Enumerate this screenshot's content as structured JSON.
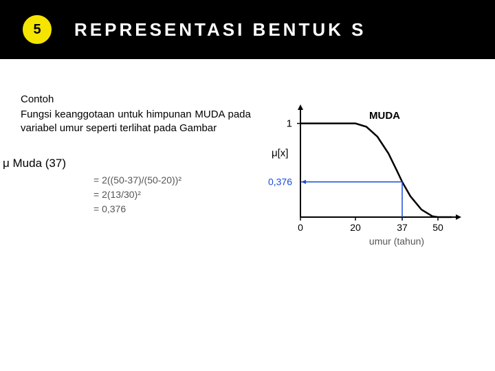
{
  "header": {
    "badge_number": "5",
    "title": "REPRESENTASI BENTUK S"
  },
  "body_text": {
    "contoh_label": "Contoh",
    "paragraph": "Fungsi keanggotaan untuk himpunan MUDA pada variabel umur seperti terlihat pada Gambar",
    "mu_label": "μ Muda  (37)",
    "calc_line1": "=   2((50-37)/(50-20))²",
    "calc_line2": "=   2(13/30)²",
    "calc_line3": "=   0,376"
  },
  "chart": {
    "type": "line",
    "curve_label": "MUDA",
    "y_axis_label": "μ[x]",
    "x_axis_label": "umur (tahun)",
    "y_max_tick": "1",
    "x_tick_0": "0",
    "x_tick_20": "20",
    "x_tick_37": "37",
    "x_tick_50": "50",
    "y_marker_value": "0,376",
    "x_marker_value": 37,
    "colors": {
      "axis": "#000000",
      "curve": "#000000",
      "marker_line": "#1a4cd6",
      "marker_text": "#1a4cd6",
      "background": "#ffffff",
      "label_text": "#555555"
    },
    "axis_line_width": 2,
    "curve_line_width": 2.5,
    "marker_line_width": 1.5,
    "xlim": [
      0,
      55
    ],
    "ylim": [
      0,
      1.1
    ],
    "s_curve_a": 20,
    "s_curve_b": 50,
    "curve_points": [
      {
        "x": 0,
        "y": 1.0
      },
      {
        "x": 20,
        "y": 1.0
      },
      {
        "x": 24,
        "y": 0.964
      },
      {
        "x": 28,
        "y": 0.858
      },
      {
        "x": 32,
        "y": 0.68
      },
      {
        "x": 35,
        "y": 0.5
      },
      {
        "x": 37,
        "y": 0.376
      },
      {
        "x": 40,
        "y": 0.222
      },
      {
        "x": 44,
        "y": 0.08
      },
      {
        "x": 48,
        "y": 0.009
      },
      {
        "x": 50,
        "y": 0.0
      },
      {
        "x": 55,
        "y": 0.0
      }
    ]
  }
}
